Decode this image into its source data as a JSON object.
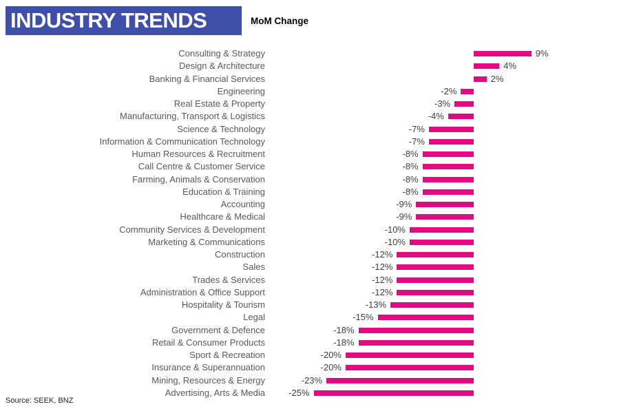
{
  "header": {
    "title": "INDUSTRY TRENDS",
    "subtitle": "MoM Change",
    "title_bg_color": "#3F4FA9",
    "title_text_color": "#FFFFFF"
  },
  "footer": {
    "source": "Source: SEEK,  BNZ"
  },
  "colors": {
    "bar": "#E40A82",
    "category_label": "#595959",
    "value_label": "#404040"
  },
  "chart_data": {
    "type": "bar",
    "orientation": "horizontal",
    "title": "INDUSTRY TRENDS",
    "subtitle": "MoM Change",
    "unit": "%",
    "value_labels_shown": true,
    "axes_hidden": true,
    "grid": false,
    "legend": false,
    "xlim": [
      -33,
      25
    ],
    "categories": [
      "Consulting & Strategy",
      "Design & Architecture",
      "Banking & Financial Services",
      "Engineering",
      "Real Estate & Property",
      "Manufacturing, Transport & Logistics",
      "Science & Technology",
      "Information & Communication Technology",
      "Human Resources & Recruitment",
      "Call Centre & Customer Service",
      "Farming, Animals & Conservation",
      "Education & Training",
      "Accounting",
      "Healthcare & Medical",
      "Community Services & Development",
      "Marketing & Communications",
      "Construction",
      "Sales",
      "Trades & Services",
      "Administration & Office Support",
      "Hospitality & Tourism",
      "Legal",
      "Government & Defence",
      "Retail & Consumer Products",
      "Sport & Recreation",
      "Insurance & Superannuation",
      "Mining, Resources & Energy",
      "Advertising, Arts & Media"
    ],
    "values": [
      9,
      4,
      2,
      -2,
      -3,
      -4,
      -7,
      -7,
      -8,
      -8,
      -8,
      -8,
      -9,
      -9,
      -10,
      -10,
      -12,
      -12,
      -12,
      -12,
      -13,
      -15,
      -18,
      -18,
      -20,
      -20,
      -23,
      -25
    ]
  }
}
